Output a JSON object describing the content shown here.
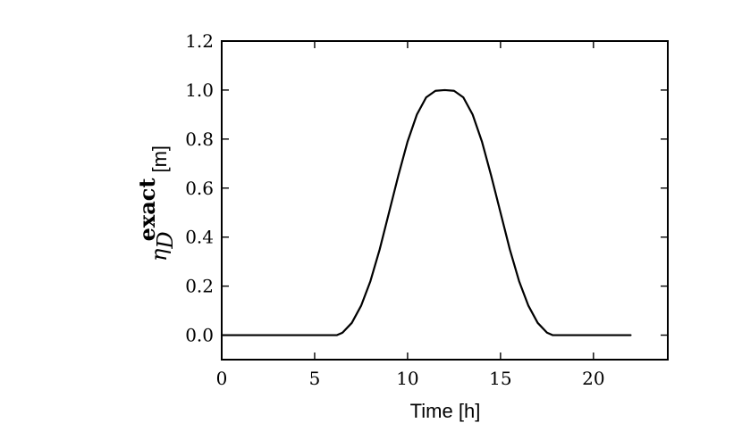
{
  "chart_data": {
    "type": "line",
    "title": "",
    "xlabel": "Time [h]",
    "ylabel": {
      "symbol": "η",
      "subscript": "D",
      "superscript": "exact",
      "unit": "[m]"
    },
    "xlim": [
      0,
      24
    ],
    "ylim": [
      -0.1,
      1.2
    ],
    "xticks": [
      0,
      5,
      10,
      15,
      20
    ],
    "xtick_labels": [
      "0",
      "5",
      "10",
      "15",
      "20"
    ],
    "yticks": [
      0.0,
      0.2,
      0.4,
      0.6,
      0.8,
      1.0,
      1.2
    ],
    "ytick_labels": [
      "0.0",
      "0.2",
      "0.4",
      "0.6",
      "0.8",
      "1.0",
      "1.2"
    ],
    "grid": false,
    "line_color": "#000000",
    "series": [
      {
        "x": [
          0,
          2,
          4,
          6,
          6.2,
          6.5,
          7,
          7.5,
          8,
          8.5,
          9,
          9.5,
          10,
          10.5,
          11,
          11.5,
          12,
          12.5,
          13,
          13.5,
          14,
          14.5,
          15,
          15.5,
          16,
          16.5,
          17,
          17.5,
          17.8,
          18,
          20,
          22
        ],
        "y": [
          0,
          0,
          0,
          0,
          0.0,
          0.01,
          0.05,
          0.12,
          0.22,
          0.35,
          0.5,
          0.65,
          0.79,
          0.9,
          0.97,
          0.997,
          1.0,
          0.997,
          0.97,
          0.9,
          0.79,
          0.65,
          0.5,
          0.35,
          0.22,
          0.12,
          0.05,
          0.01,
          0.0,
          0.0,
          0,
          0
        ]
      }
    ]
  }
}
